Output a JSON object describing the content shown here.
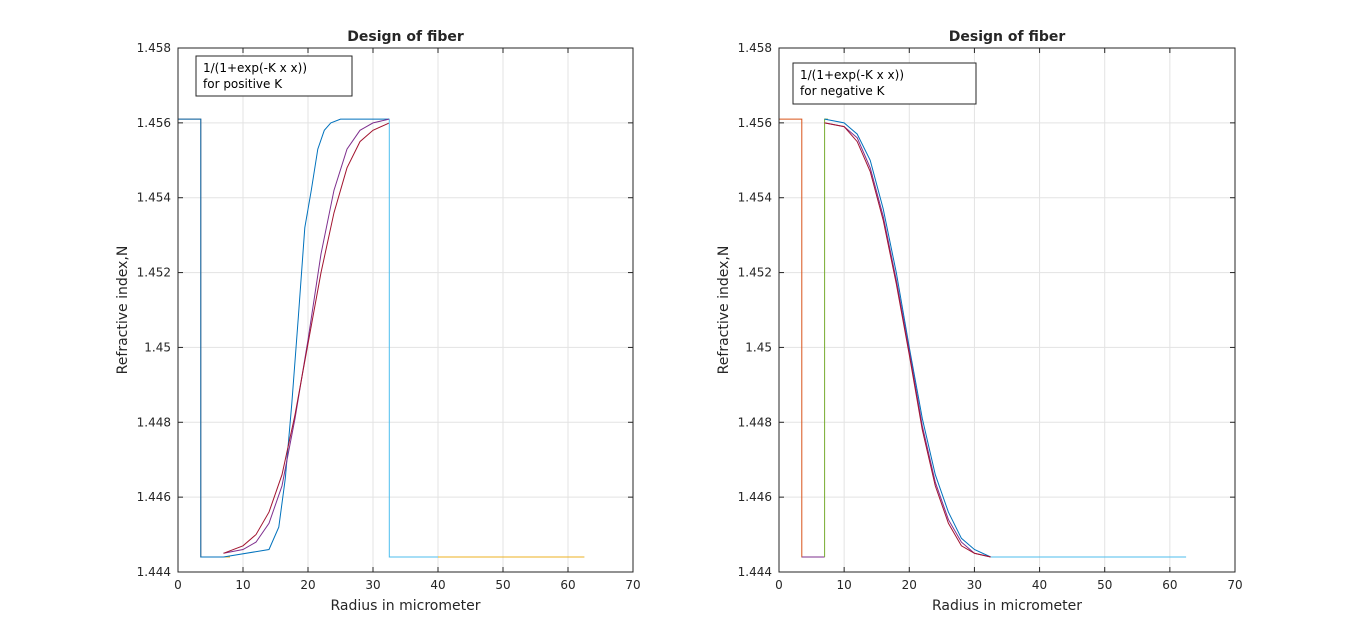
{
  "chart_data": [
    {
      "type": "line",
      "title": "Design of fiber",
      "xlabel": "Radius in micrometer",
      "ylabel": "Refractive index,N",
      "xlim": [
        0,
        70
      ],
      "ylim": [
        1.444,
        1.458
      ],
      "xticks": [
        "0",
        "10",
        "20",
        "30",
        "40",
        "50",
        "60",
        "70"
      ],
      "yticks": [
        "1.444",
        "1.446",
        "1.448",
        "1.45",
        "1.452",
        "1.454",
        "1.456",
        "1.458"
      ],
      "grid": true,
      "annotation": [
        "1/(1+exp(-K x x))",
        "for positive K"
      ],
      "series": [
        {
          "color": "#D95319",
          "x": [
            0,
            3.5,
            3.5,
            8
          ],
          "y": [
            1.4561,
            1.4561,
            1.4444,
            1.4444
          ]
        },
        {
          "color": "#EDB120",
          "x": [
            3.5,
            8
          ],
          "y": [
            1.4444,
            1.4444
          ]
        },
        {
          "color": "#0072BD",
          "x": [
            0,
            3.5,
            3.5,
            7,
            14,
            15.5,
            16.5,
            17.5,
            18.5,
            19.5,
            20.5,
            21.5,
            22.5,
            23.5,
            25,
            27,
            32.5
          ],
          "y": [
            1.4561,
            1.4561,
            1.4444,
            1.4444,
            1.4446,
            1.4452,
            1.4465,
            1.4485,
            1.4508,
            1.4532,
            1.4542,
            1.4553,
            1.4558,
            1.456,
            1.4561,
            1.4561,
            1.4561
          ]
        },
        {
          "color": "#7E2F8E",
          "x": [
            7,
            10,
            12,
            14,
            16,
            18,
            20,
            22,
            24,
            26,
            28,
            30,
            32.5
          ],
          "y": [
            1.4445,
            1.4446,
            1.4448,
            1.4453,
            1.4463,
            1.4481,
            1.4502,
            1.4525,
            1.4542,
            1.4553,
            1.4558,
            1.456,
            1.4561
          ]
        },
        {
          "color": "#A2142F",
          "x": [
            7,
            10,
            12,
            14,
            16,
            18,
            20,
            22,
            24,
            26,
            28,
            30,
            32.5
          ],
          "y": [
            1.4445,
            1.4447,
            1.445,
            1.4456,
            1.4466,
            1.4482,
            1.4501,
            1.452,
            1.4536,
            1.4548,
            1.4555,
            1.4558,
            1.456
          ]
        },
        {
          "color": "#4DBEEE",
          "x": [
            32.5,
            32.5,
            62.5
          ],
          "y": [
            1.4561,
            1.4444,
            1.4444
          ]
        },
        {
          "color": "#EDB120",
          "x": [
            40,
            62.5
          ],
          "y": [
            1.4444,
            1.4444
          ]
        }
      ]
    },
    {
      "type": "line",
      "title": "Design of fiber",
      "xlabel": "Radius in micrometer",
      "ylabel": "Refractive index,N",
      "xlim": [
        0,
        70
      ],
      "ylim": [
        1.444,
        1.458
      ],
      "xticks": [
        "0",
        "10",
        "20",
        "30",
        "40",
        "50",
        "60",
        "70"
      ],
      "yticks": [
        "1.444",
        "1.446",
        "1.448",
        "1.45",
        "1.452",
        "1.454",
        "1.456",
        "1.458"
      ],
      "grid": true,
      "annotation": [
        "1/(1+exp(-K x x))",
        "for negative K"
      ],
      "series": [
        {
          "color": "#D95319",
          "x": [
            0,
            3.5,
            3.5,
            7
          ],
          "y": [
            1.4561,
            1.4561,
            1.4444,
            1.4444
          ]
        },
        {
          "color": "#EDB120",
          "x": [
            3.5,
            7
          ],
          "y": [
            1.4444,
            1.4444
          ]
        },
        {
          "color": "#7E2F8E",
          "x": [
            3.5,
            7
          ],
          "y": [
            1.4444,
            1.4444
          ]
        },
        {
          "color": "#77AC30",
          "x": [
            7,
            7,
            7.5
          ],
          "y": [
            1.4444,
            1.4561,
            1.4561
          ]
        },
        {
          "color": "#0072BD",
          "x": [
            7,
            10,
            12,
            14,
            16,
            18,
            20,
            22,
            24,
            26,
            28,
            30,
            32.5
          ],
          "y": [
            1.4561,
            1.456,
            1.4557,
            1.455,
            1.4537,
            1.452,
            1.45,
            1.4481,
            1.4466,
            1.4456,
            1.4449,
            1.4446,
            1.4444
          ]
        },
        {
          "color": "#7E2F8E",
          "x": [
            7,
            10,
            12,
            14,
            16,
            18,
            20,
            22,
            24,
            26,
            28,
            30,
            32.5
          ],
          "y": [
            1.456,
            1.4559,
            1.4556,
            1.4548,
            1.4535,
            1.4518,
            1.4499,
            1.4479,
            1.4464,
            1.4454,
            1.4448,
            1.4445,
            1.4444
          ]
        },
        {
          "color": "#A2142F",
          "x": [
            7,
            10,
            12,
            14,
            16,
            18,
            20,
            22,
            24,
            26,
            28,
            30,
            32.5
          ],
          "y": [
            1.456,
            1.4559,
            1.4555,
            1.4547,
            1.4534,
            1.4517,
            1.4498,
            1.4478,
            1.4463,
            1.4453,
            1.4447,
            1.4445,
            1.4444
          ]
        },
        {
          "color": "#4DBEEE",
          "x": [
            32.5,
            62.5
          ],
          "y": [
            1.4444,
            1.4444
          ]
        }
      ]
    }
  ]
}
